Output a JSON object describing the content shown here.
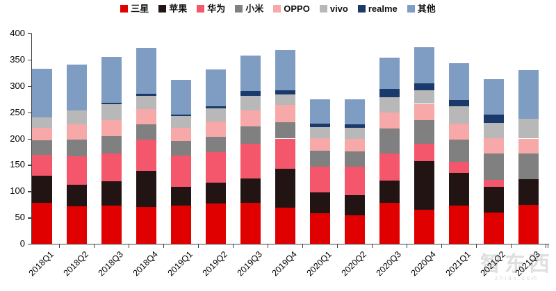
{
  "chart_data": {
    "type": "bar",
    "stacked": true,
    "title": "",
    "xlabel": "",
    "ylabel": "",
    "legend_position": "top-center",
    "grid": false,
    "ylim": [
      0,
      400
    ],
    "ytick_step": 50,
    "ytick_labels": [
      "0",
      "50",
      "100",
      "150",
      "200",
      "250",
      "300",
      "350",
      "400"
    ],
    "categories": [
      "2018Q1",
      "2018Q2",
      "2018Q3",
      "2018Q4",
      "2019Q1",
      "2019Q2",
      "2019Q3",
      "2019Q4",
      "2020Q1",
      "2020Q2",
      "2020Q3",
      "2020Q4",
      "2021Q1",
      "2021Q2",
      "2021Q3"
    ],
    "series": [
      {
        "key": "samsung",
        "name": "三星",
        "color": "#e00000",
        "values": [
          78,
          71,
          72,
          70,
          72,
          76,
          78,
          68,
          58,
          54,
          78,
          65,
          73,
          60,
          74
        ]
      },
      {
        "key": "apple",
        "name": "苹果",
        "color": "#221412",
        "values": [
          52,
          41,
          47,
          68,
          36,
          40,
          46,
          74,
          40,
          38,
          42,
          92,
          62,
          48,
          49
        ]
      },
      {
        "key": "huawei",
        "name": "华为",
        "color": "#f4566c",
        "values": [
          39,
          54,
          52,
          60,
          59,
          58,
          66,
          58,
          49,
          54,
          52,
          33,
          21,
          14,
          0
        ]
      },
      {
        "key": "xiaomi",
        "name": "小米",
        "color": "#808080",
        "values": [
          28,
          32,
          34,
          29,
          28,
          29,
          33,
          31,
          30,
          29,
          47,
          45,
          42,
          50,
          48
        ]
      },
      {
        "key": "oppo",
        "name": "OPPO",
        "color": "#f7a8a9",
        "values": [
          24,
          29,
          30,
          29,
          25,
          29,
          31,
          33,
          24,
          24,
          31,
          31,
          31,
          29,
          29
        ]
      },
      {
        "key": "vivo",
        "name": "vivo",
        "color": "#b8b8b8",
        "values": [
          19,
          26,
          30,
          25,
          23,
          26,
          27,
          20,
          21,
          21,
          29,
          26,
          33,
          29,
          37
        ]
      },
      {
        "key": "realme",
        "name": "realme",
        "color": "#1a3a6b",
        "values": [
          0,
          0,
          3,
          4,
          3,
          4,
          10,
          8,
          7,
          7,
          15,
          13,
          11,
          15,
          0
        ]
      },
      {
        "key": "others",
        "name": "其他",
        "color": "#7f9cc3",
        "values": [
          93,
          88,
          87,
          87,
          65,
          69,
          67,
          76,
          46,
          48,
          60,
          69,
          70,
          68,
          93
        ]
      }
    ],
    "totals": [
      333,
      341,
      355,
      372,
      311,
      331,
      358,
      368,
      275,
      275,
      354,
      374,
      343,
      313,
      330
    ]
  },
  "watermark": {
    "text": "智东西",
    "subtext": "zhidx.com"
  }
}
